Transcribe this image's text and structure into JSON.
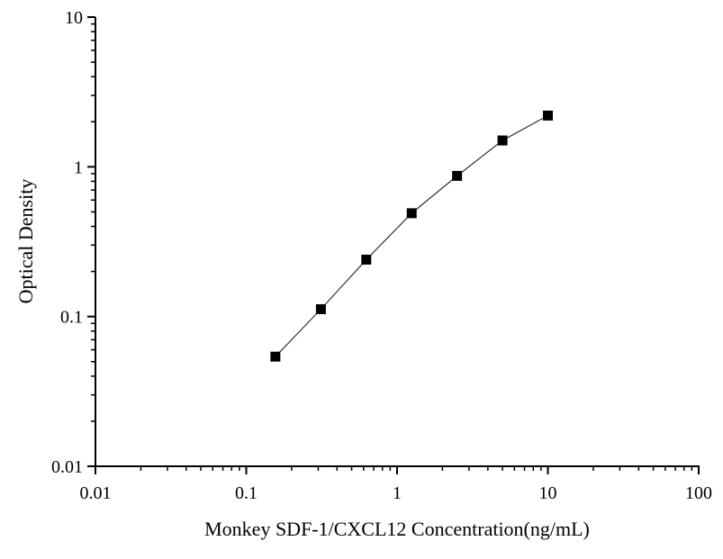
{
  "chart_data": {
    "type": "line",
    "title": "",
    "xlabel": "Monkey SDF-1/CXCL12 Concentration(ng/mL)",
    "ylabel": "Optical Density",
    "xscale": "log",
    "yscale": "log",
    "xlim": [
      0.01,
      100
    ],
    "ylim": [
      0.01,
      10
    ],
    "xticks": [
      "0.01",
      "0.1",
      "1",
      "10",
      "100"
    ],
    "yticks": [
      "0.01",
      "0.1",
      "1",
      "10"
    ],
    "grid": false,
    "marker": "square",
    "color": "#000000",
    "series": [
      {
        "x": [
          0.156,
          0.3125,
          0.625,
          1.25,
          2.5,
          5,
          10
        ],
        "y": [
          0.054,
          0.112,
          0.24,
          0.49,
          0.87,
          1.5,
          2.2
        ]
      }
    ]
  }
}
